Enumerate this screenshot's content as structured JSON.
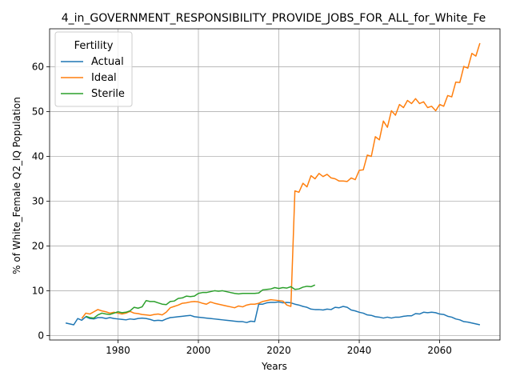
{
  "chart_data": {
    "type": "line",
    "title": "4_in_GOVERNMENT_RESPONSIBILITY_PROVIDE_JOBS_FOR_ALL_for_White_Fe",
    "xlabel": "Years",
    "ylabel": "% of White_Female Q2_IQ Population",
    "xlim": [
      1963,
      2075
    ],
    "ylim": [
      -1,
      68.5
    ],
    "xticks": [
      1980,
      2000,
      2020,
      2040,
      2060
    ],
    "yticks": [
      0,
      10,
      20,
      30,
      40,
      50,
      60
    ],
    "grid": true,
    "legend": {
      "title": "Fertility",
      "placement": "top-left"
    },
    "series": [
      {
        "name": "Actual",
        "color": "#1f77b4",
        "x": [
          1967,
          1968,
          1969,
          1970,
          1971,
          1972,
          1973,
          1974,
          1975,
          1976,
          1977,
          1978,
          1979,
          1980,
          1981,
          1982,
          1983,
          1984,
          1985,
          1986,
          1987,
          1988,
          1989,
          1990,
          1991,
          1992,
          1993,
          1994,
          1995,
          1996,
          1997,
          1998,
          1999,
          2000,
          2001,
          2002,
          2003,
          2004,
          2005,
          2006,
          2007,
          2008,
          2009,
          2010,
          2011,
          2012,
          2013,
          2014,
          2015,
          2016,
          2017,
          2018,
          2019,
          2020,
          2021,
          2022,
          2023,
          2024,
          2025,
          2026,
          2027,
          2028,
          2029,
          2030,
          2031,
          2032,
          2033,
          2034,
          2035,
          2036,
          2037,
          2038,
          2039,
          2040,
          2041,
          2042,
          2043,
          2044,
          2045,
          2046,
          2047,
          2048,
          2049,
          2050,
          2051,
          2052,
          2053,
          2054,
          2055,
          2056,
          2057,
          2058,
          2059,
          2060,
          2061,
          2062,
          2063,
          2064,
          2065,
          2066,
          2067,
          2068,
          2069,
          2070
        ],
        "y": [
          2.8,
          2.6,
          2.4,
          3.8,
          3.4,
          4.2,
          3.8,
          3.7,
          4.0,
          4.0,
          3.8,
          4.0,
          3.8,
          3.7,
          3.6,
          3.5,
          3.7,
          3.6,
          3.8,
          3.9,
          3.8,
          3.6,
          3.3,
          3.4,
          3.3,
          3.7,
          4.0,
          4.1,
          4.2,
          4.3,
          4.4,
          4.5,
          4.2,
          4.1,
          4.0,
          3.9,
          3.8,
          3.7,
          3.6,
          3.5,
          3.4,
          3.3,
          3.2,
          3.1,
          3.1,
          2.9,
          3.2,
          3.1,
          7.0,
          7.0,
          7.3,
          7.4,
          7.4,
          7.5,
          7.3,
          7.4,
          7.3,
          7.0,
          6.8,
          6.5,
          6.3,
          5.9,
          5.8,
          5.8,
          5.7,
          5.9,
          5.8,
          6.3,
          6.2,
          6.5,
          6.3,
          5.7,
          5.5,
          5.2,
          5.0,
          4.6,
          4.5,
          4.2,
          4.1,
          3.9,
          4.1,
          3.9,
          4.1,
          4.1,
          4.3,
          4.4,
          4.4,
          4.9,
          4.8,
          5.2,
          5.1,
          5.2,
          5.1,
          4.8,
          4.7,
          4.3,
          4.1,
          3.7,
          3.5,
          3.1,
          3.0,
          2.8,
          2.6,
          2.4
        ]
      },
      {
        "name": "Ideal",
        "color": "#ff7f0e",
        "x": [
          1971,
          1972,
          1973,
          1974,
          1975,
          1976,
          1977,
          1978,
          1979,
          1980,
          1981,
          1982,
          1983,
          1984,
          1985,
          1986,
          1987,
          1988,
          1989,
          1990,
          1991,
          1992,
          1993,
          1994,
          1995,
          1996,
          1997,
          1998,
          1999,
          2000,
          2001,
          2002,
          2003,
          2004,
          2005,
          2006,
          2007,
          2008,
          2009,
          2010,
          2011,
          2012,
          2013,
          2014,
          2015,
          2016,
          2017,
          2018,
          2019,
          2020,
          2021,
          2022,
          2023,
          2024,
          2025,
          2026,
          2027,
          2028,
          2029,
          2030,
          2031,
          2032,
          2033,
          2034,
          2035,
          2036,
          2037,
          2038,
          2039,
          2040,
          2041,
          2042,
          2043,
          2044,
          2045,
          2046,
          2047,
          2048,
          2049,
          2050,
          2051,
          2052,
          2053,
          2054,
          2055,
          2056,
          2057,
          2058,
          2059,
          2060,
          2061,
          2062,
          2063,
          2064,
          2065,
          2066,
          2067,
          2068,
          2069,
          2070
        ],
        "y": [
          3.8,
          5.0,
          4.8,
          5.3,
          5.8,
          5.5,
          5.3,
          5.0,
          5.2,
          5.0,
          4.8,
          5.0,
          5.4,
          5.0,
          4.9,
          4.7,
          4.6,
          4.5,
          4.7,
          4.8,
          4.6,
          5.2,
          6.2,
          6.5,
          6.8,
          7.2,
          7.3,
          7.5,
          7.6,
          7.5,
          7.2,
          7.0,
          7.5,
          7.2,
          7.0,
          6.8,
          6.6,
          6.4,
          6.2,
          6.6,
          6.4,
          6.8,
          7.0,
          7.0,
          7.2,
          7.6,
          7.8,
          8.0,
          7.9,
          7.8,
          7.7,
          6.8,
          6.5,
          32.3,
          32.0,
          34.0,
          33.2,
          35.7,
          35.0,
          36.2,
          35.5,
          36.0,
          35.2,
          35.0,
          34.5,
          34.5,
          34.4,
          35.2,
          34.8,
          36.9,
          37.0,
          40.3,
          40.0,
          44.4,
          43.7,
          47.9,
          46.5,
          50.2,
          49.2,
          51.6,
          50.9,
          52.5,
          51.8,
          52.9,
          51.8,
          52.2,
          50.9,
          51.2,
          50.2,
          51.6,
          51.2,
          53.6,
          53.3,
          56.6,
          56.5,
          60.1,
          59.7,
          63.0,
          62.4,
          65.3
        ]
      },
      {
        "name": "Sterile",
        "color": "#2ca02c",
        "x": [
          1972,
          1973,
          1974,
          1975,
          1976,
          1977,
          1978,
          1979,
          1980,
          1981,
          1982,
          1983,
          1984,
          1985,
          1986,
          1987,
          1988,
          1989,
          1990,
          1991,
          1992,
          1993,
          1994,
          1995,
          1996,
          1997,
          1998,
          1999,
          2000,
          2001,
          2002,
          2003,
          2004,
          2005,
          2006,
          2007,
          2008,
          2009,
          2010,
          2011,
          2012,
          2013,
          2014,
          2015,
          2016,
          2017,
          2018,
          2019,
          2020,
          2021,
          2022,
          2023,
          2024,
          2025,
          2026,
          2027,
          2028,
          2029
        ],
        "y": [
          4.3,
          4.0,
          3.9,
          4.6,
          5.0,
          4.8,
          4.7,
          5.0,
          5.3,
          5.1,
          5.2,
          5.5,
          6.3,
          6.1,
          6.4,
          7.8,
          7.6,
          7.6,
          7.3,
          7.0,
          6.9,
          7.6,
          7.7,
          8.3,
          8.4,
          8.8,
          8.7,
          8.8,
          9.4,
          9.6,
          9.6,
          9.8,
          10.0,
          9.9,
          10.0,
          9.8,
          9.6,
          9.4,
          9.3,
          9.4,
          9.4,
          9.4,
          9.4,
          9.5,
          10.2,
          10.3,
          10.4,
          10.7,
          10.5,
          10.7,
          10.6,
          10.9,
          10.3,
          10.4,
          10.8,
          11.0,
          10.9,
          11.3
        ]
      }
    ]
  }
}
